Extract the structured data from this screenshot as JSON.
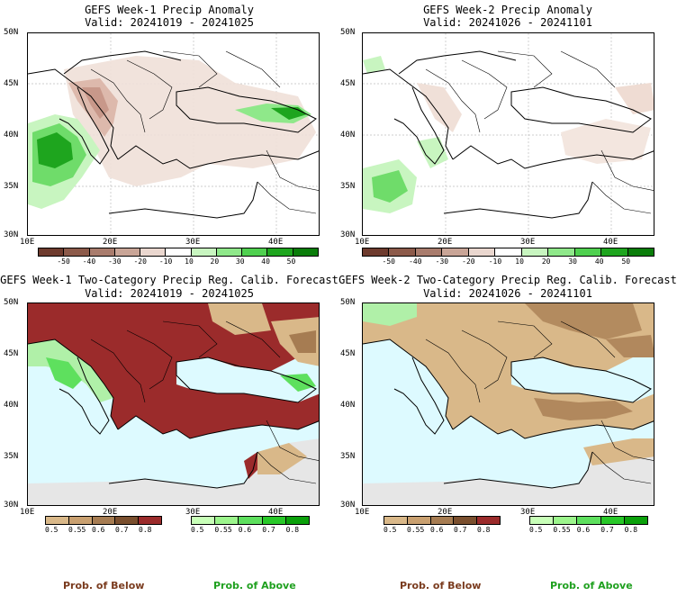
{
  "panels": [
    {
      "title_line1": "GEFS Week-1 Precip Anomaly",
      "title_line2": "Valid: 20241019 - 20241025",
      "lat_labels": [
        "50N",
        "45N",
        "40N",
        "35N",
        "30N"
      ],
      "lon_labels": [
        "10E",
        "20E",
        "30E",
        "40E"
      ]
    },
    {
      "title_line1": "GEFS Week-2 Precip Anomaly",
      "title_line2": "Valid: 20241026 - 20241101",
      "lat_labels": [
        "50N",
        "45N",
        "40N",
        "35N",
        "30N"
      ],
      "lon_labels": [
        "10E",
        "20E",
        "30E",
        "40E"
      ]
    },
    {
      "title_line1": "GEFS Week-1 Two-Category Precip Reg. Calib. Forecast",
      "title_line2": "Valid: 20241019 - 20241025",
      "lat_labels": [
        "50N",
        "45N",
        "40N",
        "35N",
        "30N"
      ],
      "lon_labels": [
        "10E",
        "20E",
        "30E",
        "40E"
      ]
    },
    {
      "title_line1": "GEFS Week-2 Two-Category Precip Reg. Calib. Forecast",
      "title_line2": "Valid: 20241026 - 20241101",
      "lat_labels": [
        "50N",
        "45N",
        "40N",
        "35N",
        "30N"
      ],
      "lon_labels": [
        "10E",
        "20E",
        "30E",
        "40E"
      ]
    }
  ],
  "anomaly_colorbar": {
    "labels": [
      "-50",
      "-40",
      "-30",
      "-20",
      "-10",
      "10",
      "20",
      "30",
      "40",
      "50"
    ],
    "colors": [
      "#6e3b2e",
      "#8c5a4a",
      "#a97c6d",
      "#c9a597",
      "#ead7cf",
      "#ffffff",
      "#c8f5c0",
      "#8fe88a",
      "#4fd04f",
      "#1ea51e",
      "#0a7d0a"
    ]
  },
  "below_colorbar": {
    "labels": [
      "0.5",
      "0.55",
      "0.6",
      "0.7",
      "0.8"
    ],
    "colors": [
      "#d9b889",
      "#c9a070",
      "#a67c52",
      "#7a4f2e",
      "#9b2b2b"
    ]
  },
  "above_colorbar": {
    "labels": [
      "0.5",
      "0.55",
      "0.6",
      "0.7",
      "0.8"
    ],
    "colors": [
      "#c8ffb8",
      "#9cf58c",
      "#5ee05e",
      "#28c828",
      "#0aa00a"
    ]
  },
  "legend_text": {
    "below_left": "Prob. of Below",
    "above_left": "Prob. of Above",
    "below_right": "Prob. of Below",
    "above_right": "Prob. of Above"
  },
  "colors": {
    "sea": "#ddfaff",
    "below_strong": "#9b2b2b",
    "below_weak": "#d9b889",
    "below_mid": "#a67c52",
    "above_green": "#5ee05e",
    "no_data": "#e6e6e6",
    "legend_brown": "#7a3b1e",
    "legend_green": "#1fa01f"
  }
}
